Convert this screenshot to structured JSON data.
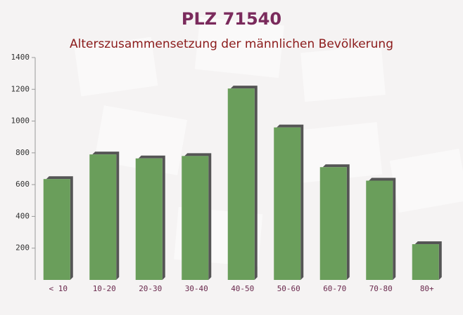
{
  "chart_data": {
    "type": "bar",
    "title": "PLZ 71540",
    "subtitle": "Alterszusammensetzung der männlichen Bevölkerung",
    "categories": [
      "< 10",
      "10-20",
      "20-30",
      "30-40",
      "40-50",
      "50-60",
      "60-70",
      "70-80",
      "80+"
    ],
    "values": [
      635,
      790,
      765,
      780,
      1205,
      960,
      710,
      625,
      225
    ],
    "color": "#6a9e5b",
    "ylim": [
      0,
      1400
    ],
    "yticks": [
      200,
      400,
      600,
      800,
      1000,
      1200,
      1400
    ]
  }
}
